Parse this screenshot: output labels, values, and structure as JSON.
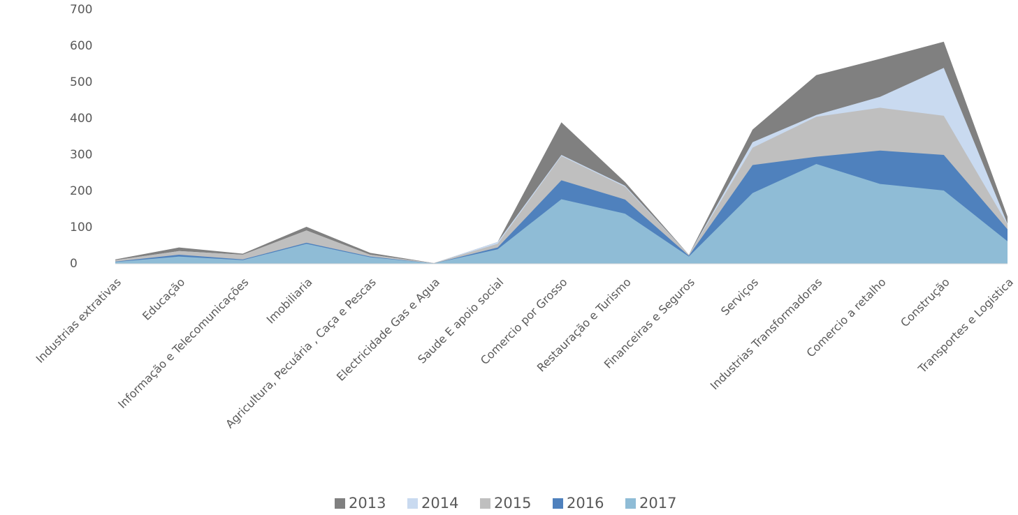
{
  "chart_data": {
    "type": "area",
    "categories": [
      "Industrias extrativas",
      "Educação",
      "Informação e Telecomunicações",
      "Imobiliaria",
      "Agricultura, Pecuária , Caça e Pescas",
      "Electricidade Gas e Agua",
      "Saude E apoio social",
      "Comercio por Grosso",
      "Restauração e Turismo",
      "Financeiras e Seguros",
      "Serviços",
      "Industrias Transformadoras",
      "Comercio a retalho",
      "Construção",
      "Transportes e Logistica"
    ],
    "series": [
      {
        "name": "2013",
        "color": "#808080",
        "values": [
          12,
          45,
          28,
          102,
          30,
          2,
          60,
          390,
          225,
          25,
          370,
          520,
          565,
          612,
          130
        ]
      },
      {
        "name": "2014",
        "color": "#c9daf0",
        "values": [
          10,
          35,
          25,
          90,
          25,
          2,
          60,
          300,
          215,
          25,
          335,
          410,
          460,
          540,
          110
        ]
      },
      {
        "name": "2015",
        "color": "#bfbfbf",
        "values": [
          10,
          35,
          25,
          92,
          25,
          2,
          55,
          297,
          212,
          25,
          320,
          405,
          430,
          408,
          108
        ]
      },
      {
        "name": "2016",
        "color": "#4f81bd",
        "values": [
          6,
          25,
          12,
          58,
          20,
          1,
          45,
          230,
          177,
          22,
          272,
          295,
          312,
          300,
          95
        ]
      },
      {
        "name": "2017",
        "color": "#8fbcd6",
        "values": [
          5,
          20,
          10,
          55,
          18,
          1,
          40,
          178,
          138,
          20,
          195,
          275,
          220,
          202,
          62
        ]
      }
    ],
    "ylim": [
      0,
      700
    ],
    "yticks": [
      0,
      100,
      200,
      300,
      400,
      500,
      600,
      700
    ],
    "legend": "bottom"
  }
}
